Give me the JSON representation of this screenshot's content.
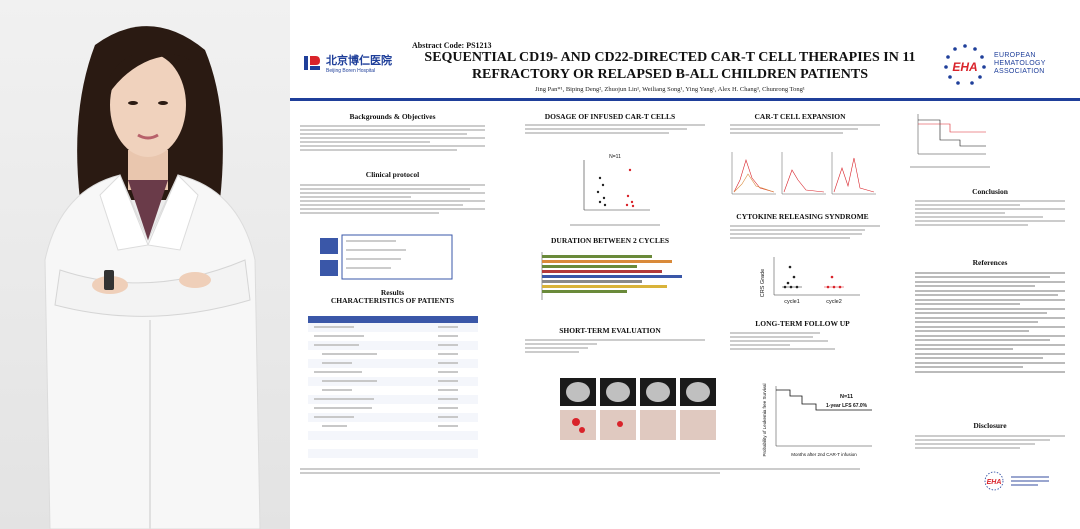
{
  "poster": {
    "abstract_code": "Abstract Code: PS1213",
    "title_line1": "SEQUENTIAL CD19- AND CD22-DIRECTED CAR-T CELL THERAPIES IN 11",
    "title_line2": "REFRACTORY OR RELAPSED B-ALL CHILDREN PATIENTS",
    "authors": "Jing Pan*¹, Biping Deng², Zhuojun Lin¹, Weiliang Song¹, Ying Yang¹, Alex H. Chang³, Chunrong Tong¹",
    "hospital_cn": "北京博仁医院",
    "hospital_en": "Beijing Boren Hospital",
    "eha_line1": "EUROPEAN",
    "eha_line2": "HEMATOLOGY",
    "eha_line3": "ASSOCIATION",
    "eha_mark": "EHA"
  },
  "sections": {
    "background": "Backgrounds & Objectives",
    "clinical": "Clinical protocol",
    "results": "Results",
    "characteristics": "CHARACTERISTICS OF PATIENTS",
    "dosage": "DOSAGE OF INFUSED CAR-T CELLS",
    "duration": "DURATION BETWEEN 2 CYCLES",
    "short_term": "SHORT-TERM EVALUATION",
    "expansion": "CAR-T CELL EXPANSION",
    "cytokine": "CYTOKINE RELEASING SYNDROME",
    "long_term": "LONG-TERM FOLLOW UP",
    "conclusion": "Conclusion",
    "references": "References",
    "disclosure": "Disclosure"
  },
  "figures": {
    "dose_n": "N=11",
    "crs_ylabel": "CRS Grade",
    "crs_x1": "cycle1",
    "crs_x2": "cycle2",
    "km_n": "N=11",
    "km_lfs": "1-year LFS 67.0%",
    "km_ylabel": "Probability of Leukemia free Survival",
    "km_xlabel": "Months after 2nd CAR-T infusion"
  },
  "colors": {
    "accent": "#1f3f9a",
    "eha_red": "#d9232a"
  }
}
